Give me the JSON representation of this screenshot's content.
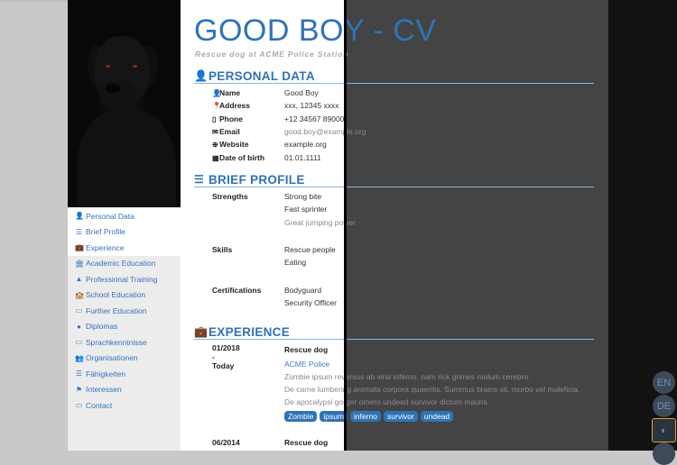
{
  "header": {
    "title": "GOOD BOY - CV",
    "subtitle": "Rescue dog at ACME Police Station"
  },
  "sidebar": {
    "items": [
      {
        "icon": "user-icon",
        "glyph": "👤",
        "label": "Personal Data"
      },
      {
        "icon": "list-icon",
        "glyph": "☰",
        "label": "Brief Profile"
      },
      {
        "icon": "briefcase-icon",
        "glyph": "💼",
        "label": "Experience"
      },
      {
        "icon": "university-icon",
        "glyph": "🏛",
        "label": "Academic Education"
      },
      {
        "icon": "road-icon",
        "glyph": "▲",
        "label": "Professional Training"
      },
      {
        "icon": "school-icon",
        "glyph": "🏫",
        "label": "School Education"
      },
      {
        "icon": "chalkboard-icon",
        "glyph": "▭",
        "label": "Further Education"
      },
      {
        "icon": "certificate-icon",
        "glyph": "●",
        "label": "Diplomas"
      },
      {
        "icon": "language-icon",
        "glyph": "▭",
        "label": "Sprachkenntnisse"
      },
      {
        "icon": "users-icon",
        "glyph": "👥",
        "label": "Organisationen"
      },
      {
        "icon": "sliders-icon",
        "glyph": "☰",
        "label": "Fähigkeiten"
      },
      {
        "icon": "interests-icon",
        "glyph": "⚑",
        "label": "Interessen"
      },
      {
        "icon": "contact-card-icon",
        "glyph": "▭",
        "label": "Contact"
      }
    ]
  },
  "personal": {
    "heading": "PERSONAL DATA",
    "rows": [
      {
        "icon": "user-icon",
        "glyph": "👤",
        "label": "Name",
        "value": "Good Boy"
      },
      {
        "icon": "map-marker-icon",
        "glyph": "📍",
        "label": "Address",
        "value": "xxx, 12345 xxxx"
      },
      {
        "icon": "phone-icon",
        "glyph": "▯",
        "label": "Phone",
        "value": "+12 34567 89000"
      },
      {
        "icon": "envelope-icon",
        "glyph": "✉",
        "label": "Email",
        "value": "good.boy@example.org"
      },
      {
        "icon": "globe-icon",
        "glyph": "⊕",
        "label": "Website",
        "value": "example.org"
      },
      {
        "icon": "calendar-icon",
        "glyph": "▦",
        "label": "Date of birth",
        "value": "01.01.1111"
      }
    ]
  },
  "profile": {
    "heading": "BRIEF PROFILE",
    "groups": [
      {
        "label": "Strengths",
        "values": [
          "Strong bite",
          "Fast sprinter",
          "Great jumping power"
        ]
      },
      {
        "label": "Skills",
        "values": [
          "Rescue people",
          "Eating"
        ]
      },
      {
        "label": "Certifications",
        "values": [
          "Bodyguard",
          "Security Officer"
        ]
      }
    ]
  },
  "experience": {
    "heading": "EXPERIENCE",
    "entries": [
      {
        "from": "01/2018",
        "sep": "-",
        "to": "Today",
        "role": "Rescue dog",
        "org": "ACME Police",
        "lines": [
          "Zombie ipsum reversus ab viral inferno, nam rick grimes malum cerebro.",
          "De carne lumbering animata corpora quaeritis. Summus brains sit, morbo vel maleficia.",
          "De apocalypsi gorger omero undead survivor dictum mauris."
        ],
        "tags": [
          "Zombie",
          "ipsum",
          "inferno",
          "survivor",
          "undead"
        ]
      },
      {
        "from": "06/2014",
        "role": "Rescue dog"
      }
    ]
  },
  "controls": {
    "lang_en": "EN",
    "lang_de": "DE",
    "theme_icon": "contrast-icon",
    "theme_glyph": "◐"
  },
  "colors": {
    "accent": "#2e73b6",
    "dark_bg": "#444444",
    "highlight": "#e0a32a"
  }
}
